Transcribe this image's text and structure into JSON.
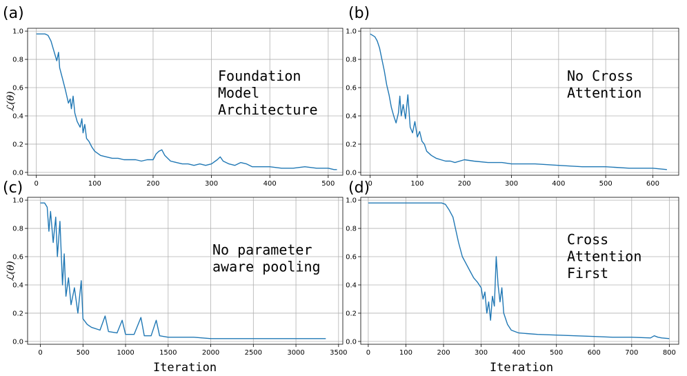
{
  "colors": {
    "line": "#1f77b4",
    "grid": "#b0b0b0"
  },
  "chart_data": [
    {
      "type": "line",
      "panel_label": "(a)",
      "annotation": [
        "Foundation",
        "Model",
        "Architecture"
      ],
      "xlabel": "",
      "ylabel": "ℒ(θ)",
      "xlim": [
        -15,
        525
      ],
      "ylim": [
        -0.02,
        1.02
      ],
      "xticks": [
        0,
        100,
        200,
        300,
        400,
        500
      ],
      "yticks": [
        0.0,
        0.2,
        0.4,
        0.6,
        0.8,
        1.0
      ],
      "ytick_labels": [
        "0.0",
        "0.2",
        "0.4",
        "0.6",
        "0.8",
        "1.0"
      ],
      "grid": true,
      "x": [
        0,
        15,
        20,
        25,
        30,
        35,
        38,
        40,
        45,
        50,
        55,
        58,
        60,
        63,
        66,
        70,
        75,
        78,
        80,
        83,
        86,
        90,
        95,
        100,
        110,
        120,
        130,
        140,
        150,
        160,
        170,
        180,
        190,
        200,
        205,
        210,
        215,
        220,
        230,
        240,
        250,
        260,
        270,
        280,
        290,
        300,
        310,
        315,
        320,
        330,
        340,
        350,
        360,
        370,
        380,
        400,
        420,
        440,
        460,
        480,
        500,
        510,
        515
      ],
      "y": [
        0.98,
        0.98,
        0.97,
        0.93,
        0.86,
        0.79,
        0.85,
        0.74,
        0.66,
        0.58,
        0.49,
        0.52,
        0.45,
        0.54,
        0.42,
        0.36,
        0.32,
        0.38,
        0.28,
        0.34,
        0.24,
        0.22,
        0.18,
        0.15,
        0.12,
        0.11,
        0.1,
        0.1,
        0.09,
        0.09,
        0.09,
        0.08,
        0.09,
        0.09,
        0.13,
        0.15,
        0.16,
        0.12,
        0.08,
        0.07,
        0.06,
        0.06,
        0.05,
        0.06,
        0.05,
        0.06,
        0.09,
        0.11,
        0.08,
        0.06,
        0.05,
        0.07,
        0.06,
        0.04,
        0.04,
        0.04,
        0.03,
        0.03,
        0.04,
        0.03,
        0.03,
        0.02,
        0.02
      ]
    },
    {
      "type": "line",
      "panel_label": "(b)",
      "annotation": [
        "No Cross",
        "Attention"
      ],
      "xlabel": "",
      "ylabel": "",
      "xlim": [
        -20,
        655
      ],
      "ylim": [
        -0.02,
        1.02
      ],
      "xticks": [
        0,
        100,
        200,
        300,
        400,
        500,
        600
      ],
      "yticks": [
        0.0,
        0.2,
        0.4,
        0.6,
        0.8,
        1.0
      ],
      "ytick_labels": [
        "0.0",
        "0.2",
        "0.4",
        "0.6",
        "0.8",
        "1.0"
      ],
      "grid": true,
      "x": [
        0,
        5,
        10,
        15,
        20,
        25,
        30,
        35,
        40,
        45,
        50,
        55,
        60,
        63,
        66,
        70,
        75,
        80,
        85,
        90,
        95,
        100,
        105,
        110,
        115,
        120,
        130,
        140,
        150,
        160,
        170,
        180,
        200,
        220,
        250,
        280,
        300,
        350,
        400,
        450,
        500,
        550,
        600,
        630
      ],
      "y": [
        0.98,
        0.97,
        0.96,
        0.93,
        0.88,
        0.8,
        0.72,
        0.62,
        0.55,
        0.46,
        0.4,
        0.35,
        0.42,
        0.54,
        0.4,
        0.48,
        0.38,
        0.55,
        0.32,
        0.28,
        0.36,
        0.25,
        0.29,
        0.22,
        0.2,
        0.15,
        0.12,
        0.1,
        0.09,
        0.08,
        0.08,
        0.07,
        0.09,
        0.08,
        0.07,
        0.07,
        0.06,
        0.06,
        0.05,
        0.04,
        0.04,
        0.03,
        0.03,
        0.02
      ]
    },
    {
      "type": "line",
      "panel_label": "(c)",
      "annotation": [
        "No parameter",
        "aware pooling"
      ],
      "xlabel": "Iteration",
      "ylabel": "ℒ(θ)",
      "xlim": [
        -150,
        3550
      ],
      "ylim": [
        -0.02,
        1.02
      ],
      "xticks": [
        0,
        500,
        1000,
        1500,
        2000,
        2500,
        3000,
        3500
      ],
      "yticks": [
        0.0,
        0.2,
        0.4,
        0.6,
        0.8,
        1.0
      ],
      "ytick_labels": [
        "0.0",
        "0.2",
        "0.4",
        "0.6",
        "0.8",
        "1.0"
      ],
      "grid": true,
      "x": [
        0,
        50,
        80,
        100,
        120,
        150,
        180,
        200,
        230,
        260,
        280,
        300,
        330,
        360,
        400,
        440,
        480,
        500,
        550,
        600,
        700,
        760,
        800,
        900,
        960,
        1000,
        1100,
        1180,
        1220,
        1300,
        1360,
        1400,
        1500,
        1600,
        1800,
        2000,
        2500,
        3000,
        3350
      ],
      "y": [
        0.98,
        0.98,
        0.95,
        0.78,
        0.92,
        0.7,
        0.88,
        0.6,
        0.85,
        0.4,
        0.62,
        0.32,
        0.45,
        0.26,
        0.38,
        0.2,
        0.43,
        0.16,
        0.12,
        0.1,
        0.08,
        0.18,
        0.07,
        0.06,
        0.15,
        0.05,
        0.05,
        0.17,
        0.04,
        0.04,
        0.15,
        0.04,
        0.03,
        0.03,
        0.03,
        0.02,
        0.02,
        0.02,
        0.02
      ]
    },
    {
      "type": "line",
      "panel_label": "(d)",
      "annotation": [
        "Cross",
        "Attention",
        "First"
      ],
      "xlabel": "Iteration",
      "ylabel": "",
      "xlim": [
        -20,
        825
      ],
      "ylim": [
        -0.02,
        1.02
      ],
      "xticks": [
        0,
        100,
        200,
        300,
        400,
        500,
        600,
        700,
        800
      ],
      "yticks": [
        0.0,
        0.2,
        0.4,
        0.6,
        0.8,
        1.0
      ],
      "ytick_labels": [
        "0.0",
        "0.2",
        "0.4",
        "0.6",
        "0.8",
        "1.0"
      ],
      "grid": true,
      "x": [
        0,
        100,
        180,
        195,
        205,
        215,
        225,
        230,
        240,
        250,
        260,
        270,
        280,
        290,
        300,
        305,
        310,
        315,
        320,
        325,
        330,
        335,
        340,
        345,
        350,
        355,
        360,
        370,
        380,
        390,
        400,
        450,
        500,
        550,
        600,
        650,
        700,
        750,
        760,
        770,
        780,
        800
      ],
      "y": [
        0.98,
        0.98,
        0.98,
        0.98,
        0.97,
        0.93,
        0.88,
        0.82,
        0.7,
        0.6,
        0.55,
        0.5,
        0.45,
        0.42,
        0.38,
        0.3,
        0.35,
        0.2,
        0.28,
        0.15,
        0.32,
        0.25,
        0.6,
        0.4,
        0.28,
        0.38,
        0.2,
        0.12,
        0.08,
        0.07,
        0.06,
        0.05,
        0.045,
        0.04,
        0.035,
        0.03,
        0.03,
        0.025,
        0.04,
        0.03,
        0.025,
        0.02
      ]
    }
  ]
}
